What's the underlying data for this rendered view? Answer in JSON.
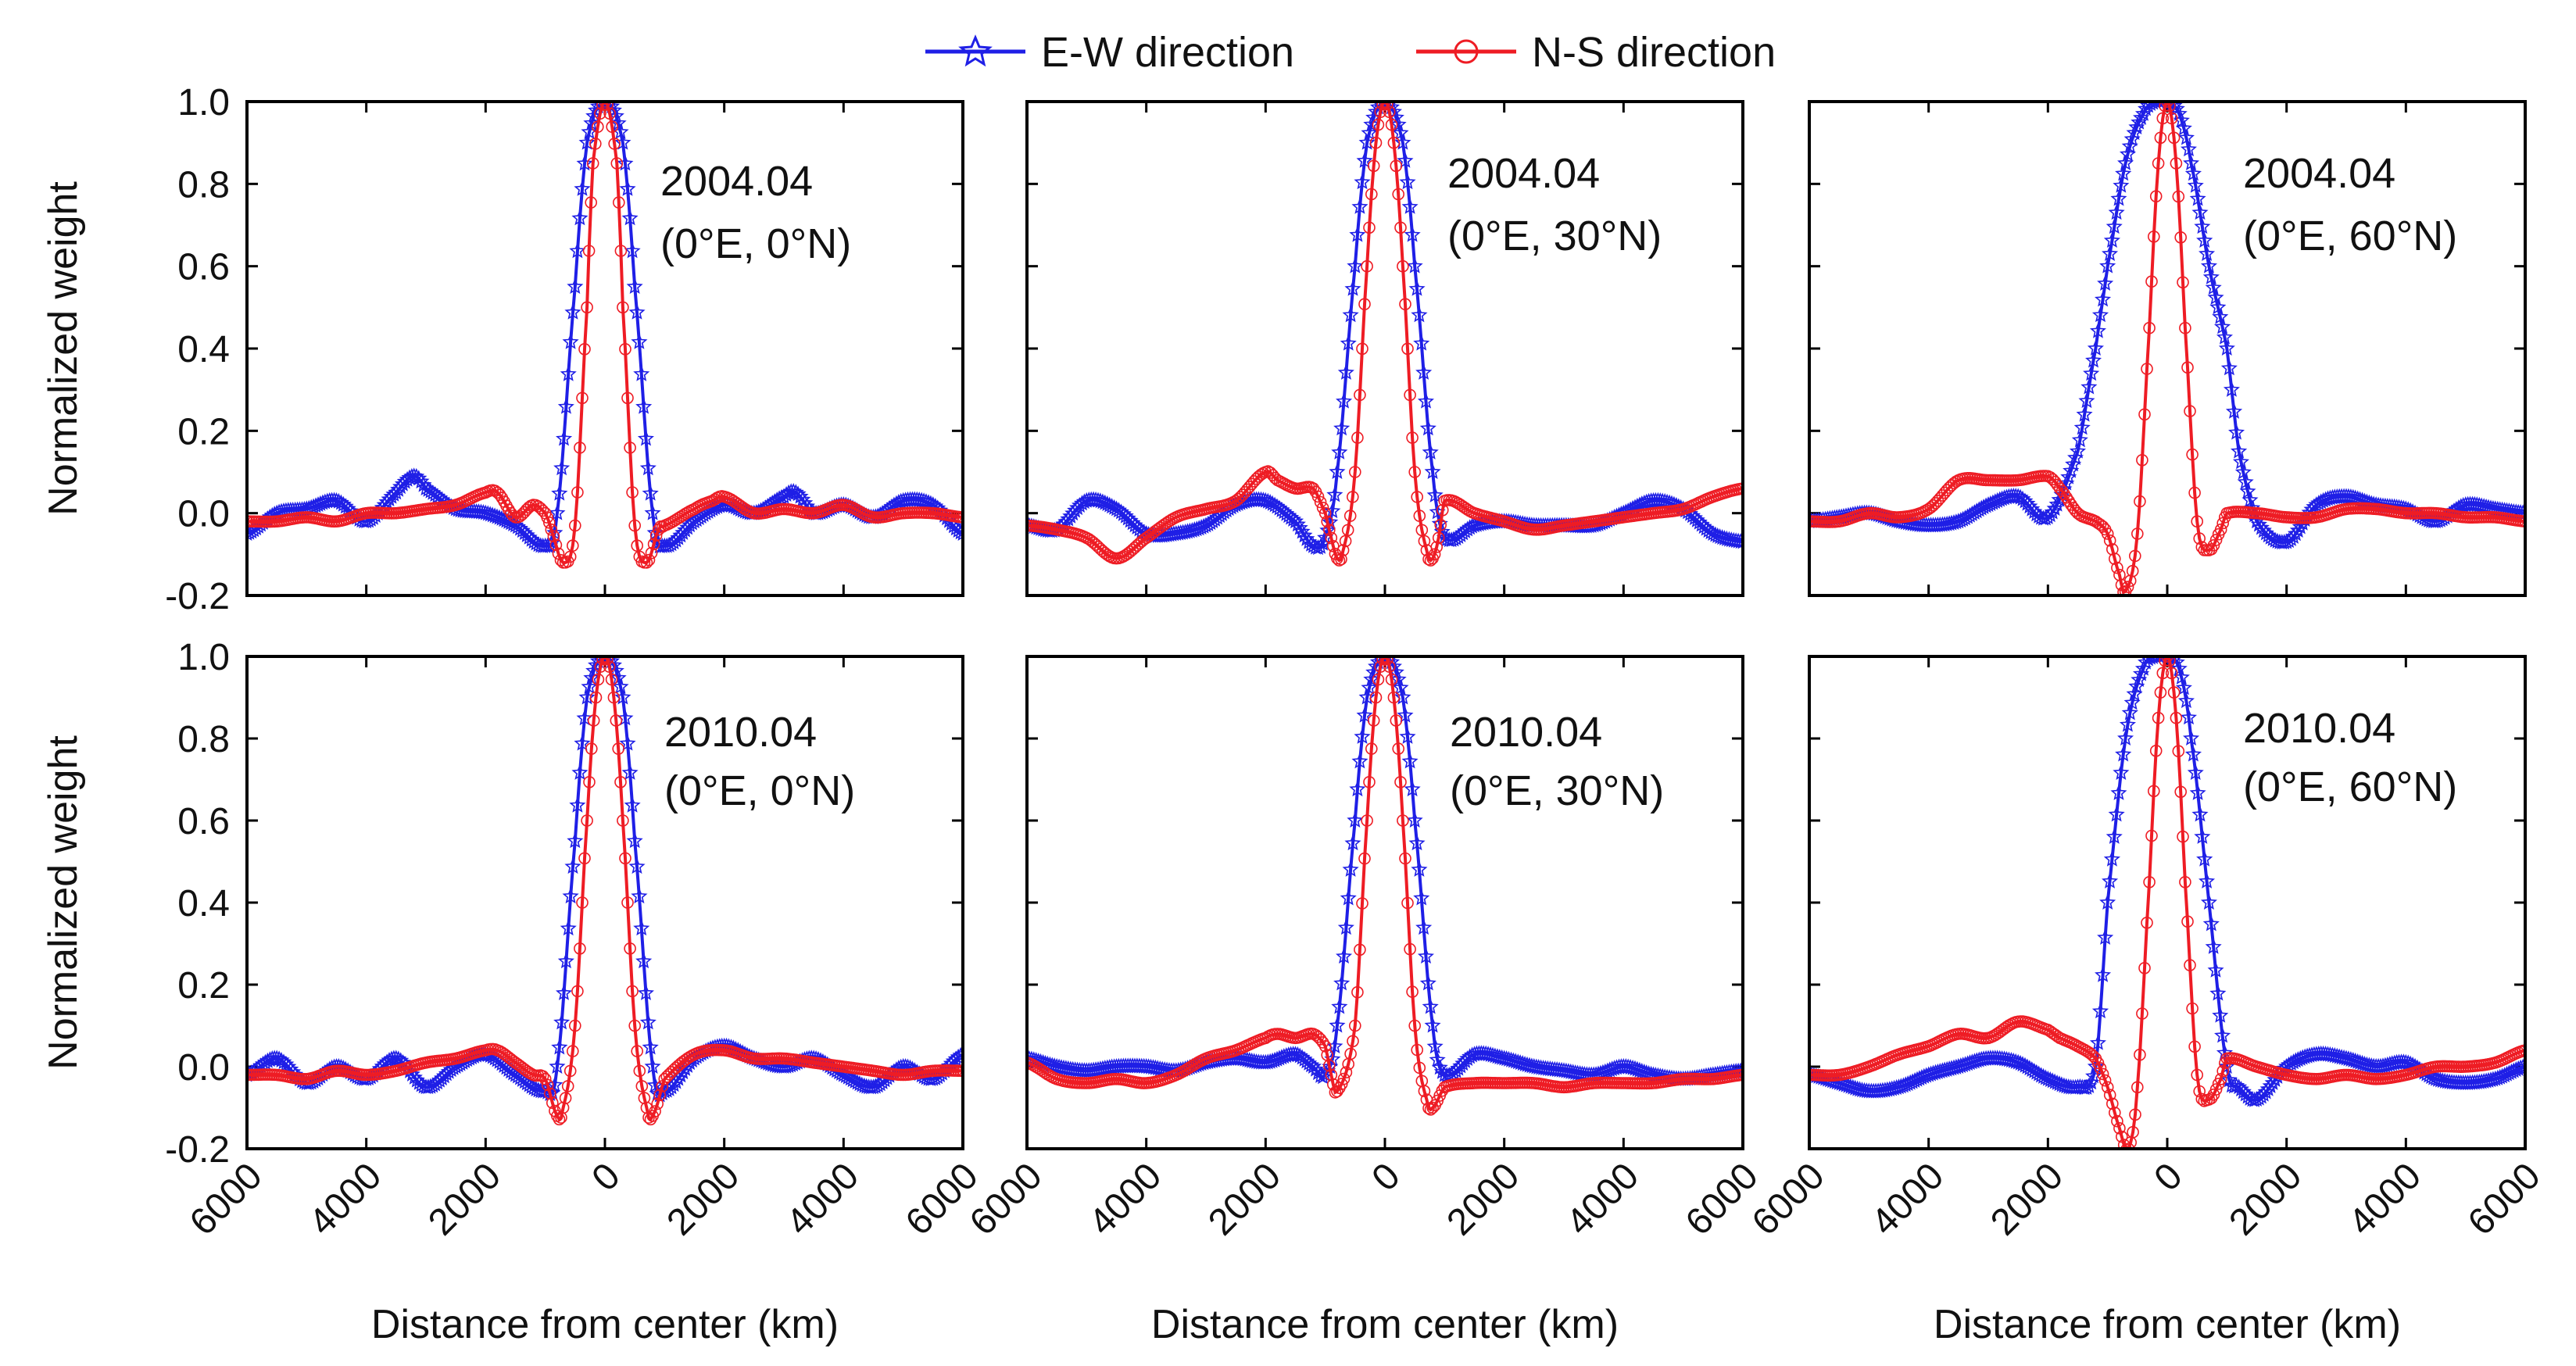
{
  "chart_data": {
    "type": "line",
    "layout": "2x3 grid",
    "legend": {
      "placement": "top-center",
      "entries": [
        {
          "name": "E-W direction",
          "color": "#1f1fe6",
          "marker": "star"
        },
        {
          "name": "N-S direction",
          "color": "#ee1c24",
          "marker": "circle"
        }
      ]
    },
    "x_axis": {
      "label": "Distance from center (km)",
      "range": [
        -6000,
        6000
      ],
      "ticks": [
        -6000,
        -4000,
        -2000,
        0,
        2000,
        4000,
        6000
      ],
      "tick_labels": [
        "6000",
        "4000",
        "2000",
        "0",
        "2000",
        "4000",
        "6000"
      ]
    },
    "y_axis": {
      "label": "Normalized weight",
      "range": [
        -0.2,
        1.0
      ],
      "ticks": [
        -0.2,
        0.0,
        0.2,
        0.4,
        0.6,
        0.8,
        1.0
      ],
      "tick_labels": [
        "-0.2",
        "0.0",
        "0.2",
        "0.4",
        "0.6",
        "0.8",
        "1.0"
      ]
    },
    "panels": [
      {
        "date": "2004.04",
        "location": "(0°E, 0°N)",
        "series": {
          "E-W direction": {
            "x": [
              -6000,
              -5500,
              -5000,
              -4500,
              -4000,
              -3500,
              -3200,
              -3000,
              -2500,
              -2000,
              -1500,
              -1000,
              -800,
              -500,
              -300,
              0,
              300,
              500,
              800,
              1000,
              1500,
              2000,
              2500,
              3000,
              3200,
              3500,
              4000,
              4500,
              5000,
              5500,
              6000
            ],
            "y": [
              -0.05,
              0.0,
              0.01,
              0.03,
              -0.02,
              0.05,
              0.09,
              0.06,
              0.01,
              0.0,
              -0.03,
              -0.08,
              0.0,
              0.55,
              0.9,
              1.0,
              0.9,
              0.55,
              0.0,
              -0.08,
              -0.02,
              0.02,
              0.0,
              0.04,
              0.05,
              0.0,
              0.02,
              -0.01,
              0.03,
              0.02,
              -0.05
            ]
          },
          "N-S direction": {
            "x": [
              -6000,
              -5500,
              -5000,
              -4500,
              -4000,
              -3500,
              -3000,
              -2500,
              -2000,
              -1800,
              -1500,
              -1200,
              -1000,
              -900,
              -700,
              -500,
              -300,
              -200,
              0,
              200,
              300,
              500,
              700,
              900,
              1000,
              1500,
              1800,
              2000,
              2500,
              3000,
              3500,
              4000,
              4500,
              5000,
              5500,
              6000
            ],
            "y": [
              -0.02,
              -0.02,
              -0.01,
              -0.02,
              0.0,
              0.0,
              0.01,
              0.02,
              0.05,
              0.05,
              -0.01,
              0.02,
              0.0,
              -0.04,
              -0.12,
              -0.03,
              0.5,
              0.85,
              1.0,
              0.85,
              0.5,
              -0.03,
              -0.12,
              -0.04,
              -0.03,
              0.01,
              0.03,
              0.04,
              0.0,
              0.01,
              0.0,
              0.02,
              -0.01,
              0.0,
              0.0,
              -0.01
            ]
          }
        }
      },
      {
        "date": "2004.04",
        "location": "(0°E, 30°N)",
        "series": {
          "E-W direction": {
            "x": [
              -6000,
              -5500,
              -5000,
              -4500,
              -4000,
              -3500,
              -3000,
              -2500,
              -2000,
              -1500,
              -1200,
              -1000,
              -800,
              -500,
              -300,
              0,
              300,
              500,
              800,
              1000,
              1500,
              2000,
              2500,
              3000,
              3500,
              4000,
              4500,
              5000,
              5500,
              6000
            ],
            "y": [
              -0.03,
              -0.04,
              0.03,
              0.01,
              -0.05,
              -0.05,
              -0.03,
              0.02,
              0.03,
              -0.02,
              -0.08,
              -0.06,
              0.1,
              0.6,
              0.9,
              1.0,
              0.9,
              0.6,
              0.1,
              -0.06,
              -0.03,
              -0.02,
              -0.03,
              -0.03,
              -0.03,
              0.0,
              0.03,
              0.01,
              -0.05,
              -0.07
            ]
          },
          "N-S direction": {
            "x": [
              -6000,
              -5500,
              -5000,
              -4500,
              -4000,
              -3500,
              -3000,
              -2500,
              -2000,
              -1800,
              -1500,
              -1200,
              -1000,
              -900,
              -800,
              -700,
              -500,
              -300,
              -150,
              0,
              150,
              300,
              500,
              700,
              800,
              900,
              1000,
              1500,
              2000,
              2500,
              3000,
              3500,
              4000,
              4500,
              5000,
              5500,
              6000
            ],
            "y": [
              -0.03,
              -0.04,
              -0.06,
              -0.11,
              -0.06,
              -0.01,
              0.01,
              0.03,
              0.1,
              0.08,
              0.06,
              0.06,
              0.0,
              -0.06,
              -0.11,
              -0.09,
              0.1,
              0.6,
              0.9,
              1.0,
              0.9,
              0.6,
              0.1,
              -0.09,
              -0.11,
              -0.06,
              0.03,
              0.0,
              -0.02,
              -0.04,
              -0.03,
              -0.02,
              -0.01,
              0.0,
              0.01,
              0.04,
              0.06
            ]
          }
        }
      },
      {
        "date": "2004.04",
        "location": "(0°E, 60°N)",
        "series": {
          "E-W direction": {
            "x": [
              -6000,
              -5500,
              -5000,
              -4500,
              -4000,
              -3500,
              -3000,
              -2500,
              -2000,
              -1500,
              -1200,
              -1000,
              -700,
              -400,
              -200,
              0,
              200,
              400,
              700,
              1000,
              1200,
              1500,
              2000,
              2500,
              3000,
              3500,
              4000,
              4500,
              5000,
              5500,
              6000
            ],
            "y": [
              -0.02,
              -0.01,
              0.0,
              -0.02,
              -0.03,
              -0.02,
              0.02,
              0.04,
              -0.01,
              0.15,
              0.4,
              0.6,
              0.85,
              0.97,
              1.0,
              1.0,
              0.97,
              0.85,
              0.6,
              0.4,
              0.15,
              -0.02,
              -0.07,
              0.02,
              0.04,
              0.02,
              0.01,
              -0.02,
              0.02,
              0.01,
              0.0
            ]
          },
          "N-S direction": {
            "x": [
              -6000,
              -5500,
              -5000,
              -4500,
              -4000,
              -3500,
              -3000,
              -2500,
              -2000,
              -1800,
              -1500,
              -1200,
              -1000,
              -800,
              -700,
              -500,
              -300,
              -150,
              0,
              150,
              300,
              500,
              700,
              900,
              1000,
              1500,
              2000,
              2500,
              3000,
              3500,
              4000,
              4500,
              5000,
              5500,
              6000
            ],
            "y": [
              -0.02,
              -0.02,
              0.0,
              -0.01,
              0.01,
              0.08,
              0.08,
              0.08,
              0.09,
              0.06,
              0.0,
              -0.02,
              -0.05,
              -0.15,
              -0.19,
              -0.05,
              0.45,
              0.85,
              1.0,
              0.85,
              0.45,
              -0.02,
              -0.09,
              -0.04,
              0.0,
              0.0,
              -0.01,
              -0.01,
              0.01,
              0.01,
              0.0,
              0.0,
              -0.01,
              -0.01,
              -0.02
            ]
          }
        }
      },
      {
        "date": "2010.04",
        "location": "(0°E, 0°N)",
        "series": {
          "E-W direction": {
            "x": [
              -6000,
              -5500,
              -5000,
              -4500,
              -4000,
              -3500,
              -3000,
              -2500,
              -2000,
              -1500,
              -1000,
              -800,
              -500,
              -300,
              0,
              300,
              500,
              800,
              1000,
              1500,
              2000,
              2500,
              3000,
              3500,
              4000,
              4500,
              5000,
              5500,
              6000
            ],
            "y": [
              -0.02,
              0.02,
              -0.04,
              0.0,
              -0.03,
              0.02,
              -0.05,
              0.0,
              0.03,
              -0.02,
              -0.06,
              0.0,
              0.55,
              0.9,
              1.0,
              0.9,
              0.55,
              0.0,
              -0.06,
              0.02,
              0.05,
              0.02,
              0.0,
              0.02,
              -0.02,
              -0.05,
              0.0,
              -0.03,
              0.03
            ]
          },
          "N-S direction": {
            "x": [
              -6000,
              -5500,
              -5000,
              -4500,
              -4000,
              -3500,
              -3000,
              -2500,
              -2000,
              -1800,
              -1500,
              -1200,
              -1000,
              -800,
              -700,
              -500,
              -300,
              -150,
              0,
              150,
              300,
              500,
              700,
              800,
              1000,
              1500,
              2000,
              2500,
              3000,
              3500,
              4000,
              4500,
              5000,
              5500,
              6000
            ],
            "y": [
              -0.02,
              -0.02,
              -0.03,
              -0.01,
              -0.02,
              -0.01,
              0.01,
              0.02,
              0.04,
              0.04,
              0.01,
              -0.02,
              -0.03,
              -0.12,
              -0.1,
              0.1,
              0.6,
              0.9,
              1.0,
              0.9,
              0.6,
              0.1,
              -0.1,
              -0.12,
              -0.03,
              0.03,
              0.04,
              0.02,
              0.02,
              0.01,
              0.0,
              -0.01,
              -0.02,
              -0.01,
              -0.01
            ]
          }
        }
      },
      {
        "date": "2010.04",
        "location": "(0°E, 30°N)",
        "series": {
          "E-W direction": {
            "x": [
              -6000,
              -5500,
              -5000,
              -4500,
              -4000,
              -3500,
              -3000,
              -2500,
              -2000,
              -1500,
              -1200,
              -1000,
              -800,
              -500,
              -300,
              0,
              300,
              500,
              800,
              1000,
              1500,
              2000,
              2500,
              3000,
              3500,
              4000,
              4500,
              5000,
              5500,
              6000
            ],
            "y": [
              0.02,
              0.0,
              -0.01,
              0.0,
              0.0,
              -0.01,
              0.01,
              0.02,
              0.01,
              0.03,
              0.0,
              -0.02,
              0.1,
              0.6,
              0.9,
              1.0,
              0.9,
              0.6,
              0.1,
              -0.02,
              0.03,
              0.02,
              0.0,
              -0.01,
              -0.02,
              0.0,
              -0.02,
              -0.03,
              -0.02,
              -0.01
            ]
          },
          "N-S direction": {
            "x": [
              -6000,
              -5500,
              -5000,
              -4500,
              -4000,
              -3500,
              -3000,
              -2500,
              -2000,
              -1800,
              -1500,
              -1200,
              -1000,
              -900,
              -800,
              -500,
              -300,
              -150,
              0,
              150,
              300,
              500,
              700,
              800,
              1000,
              1500,
              2000,
              2500,
              3000,
              3500,
              4000,
              4500,
              5000,
              5500,
              6000
            ],
            "y": [
              0.01,
              -0.03,
              -0.04,
              -0.03,
              -0.04,
              -0.02,
              0.02,
              0.04,
              0.07,
              0.08,
              0.07,
              0.08,
              0.05,
              -0.02,
              -0.06,
              0.1,
              0.6,
              0.9,
              1.0,
              0.9,
              0.6,
              0.1,
              -0.08,
              -0.1,
              -0.05,
              -0.04,
              -0.04,
              -0.04,
              -0.05,
              -0.04,
              -0.04,
              -0.04,
              -0.03,
              -0.03,
              -0.02
            ]
          }
        }
      },
      {
        "date": "2010.04",
        "location": "(0°E, 60°N)",
        "series": {
          "E-W direction": {
            "x": [
              -6000,
              -5500,
              -5000,
              -4500,
              -4000,
              -3500,
              -3000,
              -2500,
              -2000,
              -1500,
              -1200,
              -1000,
              -700,
              -400,
              -200,
              0,
              200,
              400,
              700,
              1000,
              1200,
              1500,
              2000,
              2500,
              3000,
              3500,
              4000,
              4500,
              5000,
              5500,
              6000
            ],
            "y": [
              -0.02,
              -0.04,
              -0.06,
              -0.05,
              -0.02,
              0.0,
              0.02,
              0.01,
              -0.03,
              -0.05,
              0.0,
              0.4,
              0.8,
              0.97,
              1.0,
              1.0,
              0.97,
              0.8,
              0.4,
              0.0,
              -0.05,
              -0.08,
              0.0,
              0.03,
              0.02,
              0.0,
              0.01,
              -0.03,
              -0.04,
              -0.03,
              0.0
            ]
          },
          "N-S direction": {
            "x": [
              -6000,
              -5500,
              -5000,
              -4500,
              -4000,
              -3500,
              -3000,
              -2500,
              -2000,
              -1800,
              -1500,
              -1200,
              -1000,
              -800,
              -650,
              -500,
              -300,
              -150,
              0,
              150,
              300,
              500,
              700,
              900,
              1000,
              1500,
              2000,
              2500,
              3000,
              3500,
              4000,
              4500,
              5000,
              5500,
              6000
            ],
            "y": [
              -0.02,
              -0.02,
              0.0,
              0.03,
              0.05,
              0.08,
              0.07,
              0.11,
              0.09,
              0.07,
              0.05,
              0.02,
              -0.05,
              -0.15,
              -0.2,
              -0.05,
              0.45,
              0.85,
              1.0,
              0.85,
              0.45,
              -0.02,
              -0.08,
              -0.03,
              0.02,
              0.0,
              -0.02,
              -0.03,
              -0.02,
              -0.03,
              -0.02,
              0.0,
              0.0,
              0.01,
              0.04
            ]
          }
        }
      }
    ]
  }
}
